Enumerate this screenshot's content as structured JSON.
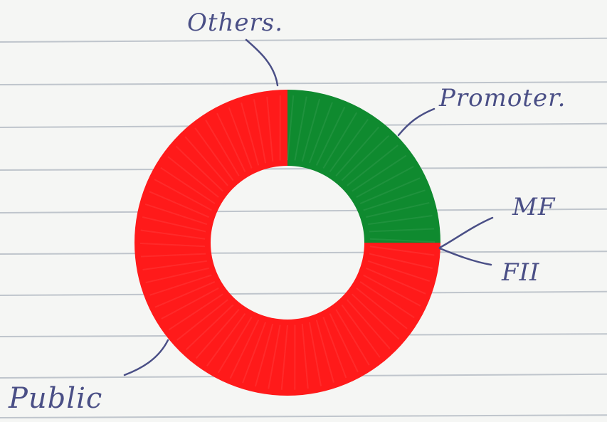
{
  "chart_data": {
    "type": "pie",
    "title": "",
    "labels": [
      "Promoter.",
      "MF",
      "FII",
      "Public",
      "Others."
    ],
    "values": [
      25,
      0,
      0,
      75,
      0
    ],
    "colors": [
      "#0f8a2f",
      "#0f8a2f",
      "#ff1a1a",
      "#ff1a1a",
      "#ff1a1a"
    ],
    "legend": "none",
    "style": "donut"
  }
}
